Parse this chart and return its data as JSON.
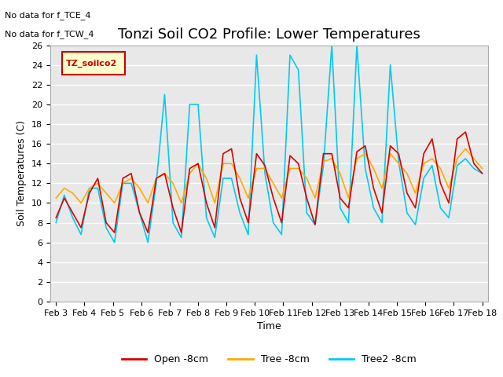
{
  "title": "Tonzi Soil CO2 Profile: Lower Temperatures",
  "xlabel": "Time",
  "ylabel": "Soil Temperatures (C)",
  "annotations": [
    "No data for f_TCE_4",
    "No data for f_TCW_4"
  ],
  "legend_label": "TZ_soilco2",
  "ylim": [
    0,
    26
  ],
  "yticks": [
    0,
    2,
    4,
    6,
    8,
    10,
    12,
    14,
    16,
    18,
    20,
    22,
    24,
    26
  ],
  "xtick_labels": [
    "Feb 3",
    "Feb 4",
    "Feb 5",
    "Feb 6",
    "Feb 7",
    "Feb 8",
    "Feb 9",
    "Feb 10",
    "Feb 11",
    "Feb 12",
    "Feb 13",
    "Feb 14",
    "Feb 15",
    "Feb 16",
    "Feb 17",
    "Feb 18"
  ],
  "background_color": "#ffffff",
  "plot_background": "#e8e8e8",
  "colors": {
    "open": "#dd0000",
    "tree": "#ffaa00",
    "tree2": "#00ccee"
  },
  "series_labels": [
    "Open -8cm",
    "Tree -8cm",
    "Tree2 -8cm"
  ],
  "open_data": [
    8.5,
    10.5,
    9.0,
    7.5,
    11.0,
    12.5,
    8.0,
    7.0,
    12.5,
    13.0,
    9.0,
    7.0,
    12.5,
    13.0,
    9.5,
    7.0,
    13.5,
    14.0,
    10.0,
    7.5,
    15.0,
    15.5,
    10.5,
    8.0,
    15.0,
    13.8,
    10.5,
    8.0,
    14.8,
    14.0,
    10.5,
    7.8,
    15.0,
    15.0,
    10.5,
    9.5,
    15.2,
    15.8,
    11.5,
    9.0,
    15.8,
    15.0,
    11.0,
    9.5,
    15.0,
    16.5,
    12.0,
    10.0,
    16.5,
    17.2,
    14.0,
    13.0
  ],
  "tree_data": [
    10.5,
    11.5,
    11.0,
    10.0,
    11.5,
    12.0,
    11.0,
    10.0,
    12.0,
    12.5,
    11.5,
    10.0,
    12.5,
    13.0,
    12.0,
    10.0,
    13.0,
    14.0,
    12.5,
    10.0,
    14.0,
    14.0,
    12.5,
    10.5,
    13.5,
    13.5,
    12.0,
    10.5,
    13.5,
    13.5,
    12.5,
    10.5,
    14.2,
    14.5,
    13.0,
    10.5,
    14.5,
    15.0,
    13.5,
    11.5,
    15.0,
    14.0,
    13.0,
    11.0,
    14.0,
    14.5,
    13.5,
    11.5,
    14.5,
    15.5,
    14.5,
    13.5
  ],
  "tree2_data": [
    8.0,
    10.8,
    8.5,
    6.8,
    11.5,
    11.5,
    7.5,
    6.0,
    12.0,
    12.0,
    9.0,
    6.0,
    12.0,
    21.0,
    8.0,
    6.5,
    20.0,
    20.0,
    8.5,
    6.5,
    12.5,
    12.5,
    9.0,
    6.8,
    25.0,
    13.0,
    8.0,
    6.8,
    25.0,
    23.5,
    9.0,
    7.8,
    13.8,
    26.0,
    9.5,
    8.0,
    26.0,
    13.5,
    9.5,
    8.0,
    24.0,
    14.2,
    9.0,
    7.8,
    12.5,
    13.8,
    9.5,
    8.5,
    13.8,
    14.5,
    13.5,
    13.0
  ],
  "title_fontsize": 13,
  "axis_fontsize": 9,
  "tick_fontsize": 8
}
